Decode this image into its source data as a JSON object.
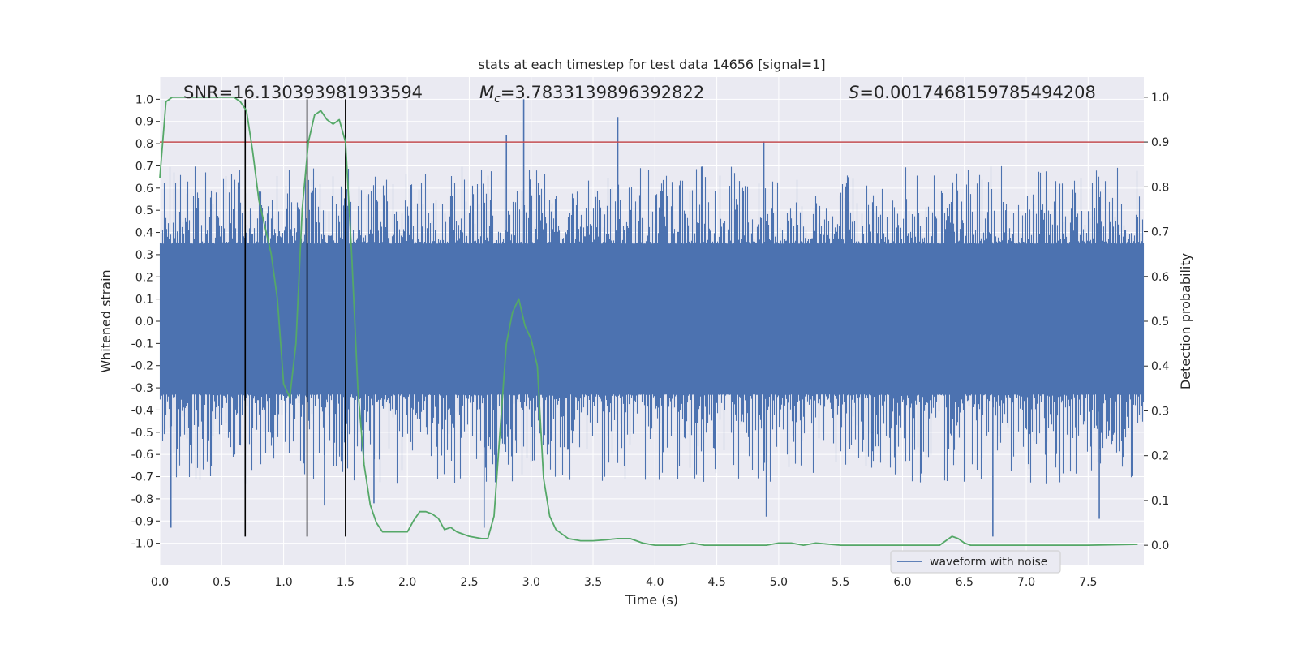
{
  "chart_data": {
    "type": "line",
    "title": "stats at each timestep for test data 14656 [signal=1]",
    "xlabel": "Time (s)",
    "ylabel": "Whitened strain",
    "y2label": "Detection probability",
    "xlim": [
      0,
      7.95
    ],
    "ylim": [
      -1.1,
      1.1
    ],
    "y2lim": [
      -0.045,
      1.045
    ],
    "xticks": [
      "0.0",
      "0.5",
      "1.0",
      "1.5",
      "2.0",
      "2.5",
      "3.0",
      "3.5",
      "4.0",
      "4.5",
      "5.0",
      "5.5",
      "6.0",
      "6.5",
      "7.0",
      "7.5"
    ],
    "yticks": [
      "1.0",
      "0.9",
      "0.8",
      "0.7",
      "0.6",
      "0.5",
      "0.4",
      "0.3",
      "0.2",
      "0.1",
      "0.0",
      "-0.1",
      "-0.2",
      "-0.3",
      "-0.4",
      "-0.5",
      "-0.6",
      "-0.7",
      "-0.8",
      "-0.9",
      "-1.0"
    ],
    "y2ticks": [
      "1.0",
      "0.9",
      "0.8",
      "0.7",
      "0.6",
      "0.5",
      "0.4",
      "0.3",
      "0.2",
      "0.1",
      "0.0"
    ],
    "annotations": {
      "snr": "SNR=16.130393981933594",
      "mc_symbol": "M",
      "mc_sub": "c",
      "mc_value": "=3.7833139896392822",
      "s_symbol": "S",
      "s_value": "=0.0017468159785494208"
    },
    "threshold": {
      "value": 0.9,
      "axis": "y2",
      "color": "#c44e52"
    },
    "vlines": {
      "x": [
        0.69,
        1.19,
        1.5
      ],
      "ymin": -0.97,
      "ymax": 1.0,
      "color": "#000000"
    },
    "series": [
      {
        "name": "waveform with noise",
        "axis": "y1",
        "color": "#4c72b0",
        "style": "dense-noise",
        "core_range": [
          -0.38,
          0.4
        ],
        "spikes": [
          {
            "x": 0.09,
            "y": -0.93
          },
          {
            "x": 0.69,
            "y": -0.73
          },
          {
            "x": 1.33,
            "y": -0.83
          },
          {
            "x": 1.73,
            "y": -0.82
          },
          {
            "x": 2.62,
            "y": -0.93
          },
          {
            "x": 2.8,
            "y": 0.84
          },
          {
            "x": 2.94,
            "y": 1.0
          },
          {
            "x": 3.7,
            "y": 0.92
          },
          {
            "x": 4.88,
            "y": 0.81
          },
          {
            "x": 4.9,
            "y": -0.88
          },
          {
            "x": 6.73,
            "y": -0.97
          },
          {
            "x": 7.59,
            "y": -0.89
          }
        ]
      },
      {
        "name": "detection probability",
        "axis": "y2",
        "color": "#55a868",
        "x": [
          0.0,
          0.05,
          0.1,
          0.2,
          0.3,
          0.4,
          0.5,
          0.6,
          0.65,
          0.7,
          0.75,
          0.8,
          0.85,
          0.9,
          0.95,
          1.0,
          1.05,
          1.1,
          1.15,
          1.2,
          1.25,
          1.3,
          1.35,
          1.4,
          1.45,
          1.5,
          1.55,
          1.6,
          1.65,
          1.7,
          1.75,
          1.8,
          1.85,
          1.9,
          2.0,
          2.05,
          2.1,
          2.15,
          2.2,
          2.25,
          2.3,
          2.35,
          2.4,
          2.5,
          2.6,
          2.65,
          2.7,
          2.75,
          2.8,
          2.85,
          2.9,
          2.95,
          3.0,
          3.05,
          3.1,
          3.15,
          3.2,
          3.25,
          3.3,
          3.4,
          3.5,
          3.6,
          3.7,
          3.8,
          3.9,
          4.0,
          4.2,
          4.3,
          4.4,
          4.5,
          4.7,
          4.9,
          5.0,
          5.1,
          5.2,
          5.3,
          5.5,
          6.0,
          6.3,
          6.4,
          6.45,
          6.5,
          6.55,
          6.6,
          7.0,
          7.5,
          7.9
        ],
        "y": [
          0.82,
          0.99,
          1.0,
          1.0,
          1.0,
          1.0,
          1.0,
          1.0,
          0.99,
          0.97,
          0.88,
          0.77,
          0.71,
          0.65,
          0.55,
          0.36,
          0.33,
          0.45,
          0.75,
          0.9,
          0.96,
          0.97,
          0.95,
          0.94,
          0.95,
          0.9,
          0.65,
          0.35,
          0.18,
          0.09,
          0.05,
          0.03,
          0.03,
          0.03,
          0.03,
          0.055,
          0.075,
          0.075,
          0.07,
          0.06,
          0.035,
          0.04,
          0.03,
          0.02,
          0.015,
          0.015,
          0.065,
          0.26,
          0.45,
          0.52,
          0.55,
          0.49,
          0.46,
          0.4,
          0.15,
          0.065,
          0.035,
          0.025,
          0.015,
          0.01,
          0.01,
          0.012,
          0.015,
          0.015,
          0.005,
          0.0,
          0.0,
          0.005,
          0.0,
          0.0,
          0.0,
          0.0,
          0.005,
          0.005,
          0.0,
          0.005,
          0.0,
          0.0,
          0.0,
          0.02,
          0.015,
          0.005,
          0.0,
          0.0,
          0.0,
          0.0,
          0.002
        ]
      }
    ],
    "legend": {
      "label": "waveform with noise",
      "placement": "lower-right"
    }
  }
}
